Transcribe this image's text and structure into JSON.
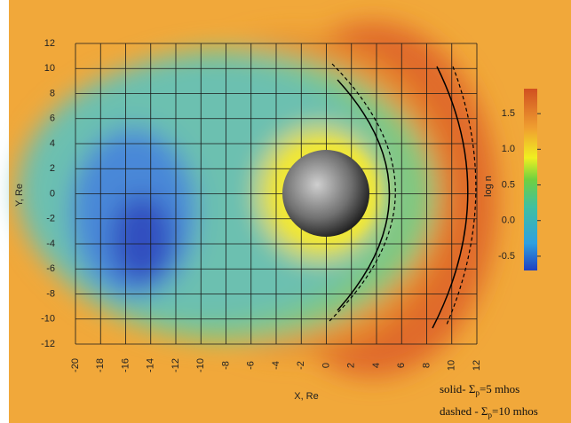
{
  "chart_data": {
    "type": "field",
    "xlabel": "X, Re",
    "ylabel": "Y, Re",
    "xlim": [
      -20,
      12
    ],
    "ylim": [
      -12,
      12
    ],
    "xticks": [
      -20,
      -18,
      -16,
      -14,
      -12,
      -10,
      -8,
      -6,
      -4,
      -2,
      0,
      2,
      4,
      6,
      8,
      10,
      12
    ],
    "yticks": [
      -12,
      -10,
      -8,
      -6,
      -4,
      -2,
      0,
      2,
      4,
      6,
      8,
      10,
      12
    ],
    "grid": true,
    "colorbar": {
      "label": "log n",
      "lim": [
        -0.7,
        1.85
      ],
      "ticks": [
        -0.5,
        {
          "value": 0,
          "label": "0.0"
        },
        0.5,
        {
          "value": 1,
          "label": "1.0"
        },
        1.5
      ]
    },
    "annotations": [
      {
        "prefix": "solid- Σ",
        "sub": "p",
        "suffix": "=5 mhos"
      },
      {
        "prefix": "dashed - Σ",
        "sub": "p",
        "suffix": "=10 mhos"
      }
    ]
  }
}
